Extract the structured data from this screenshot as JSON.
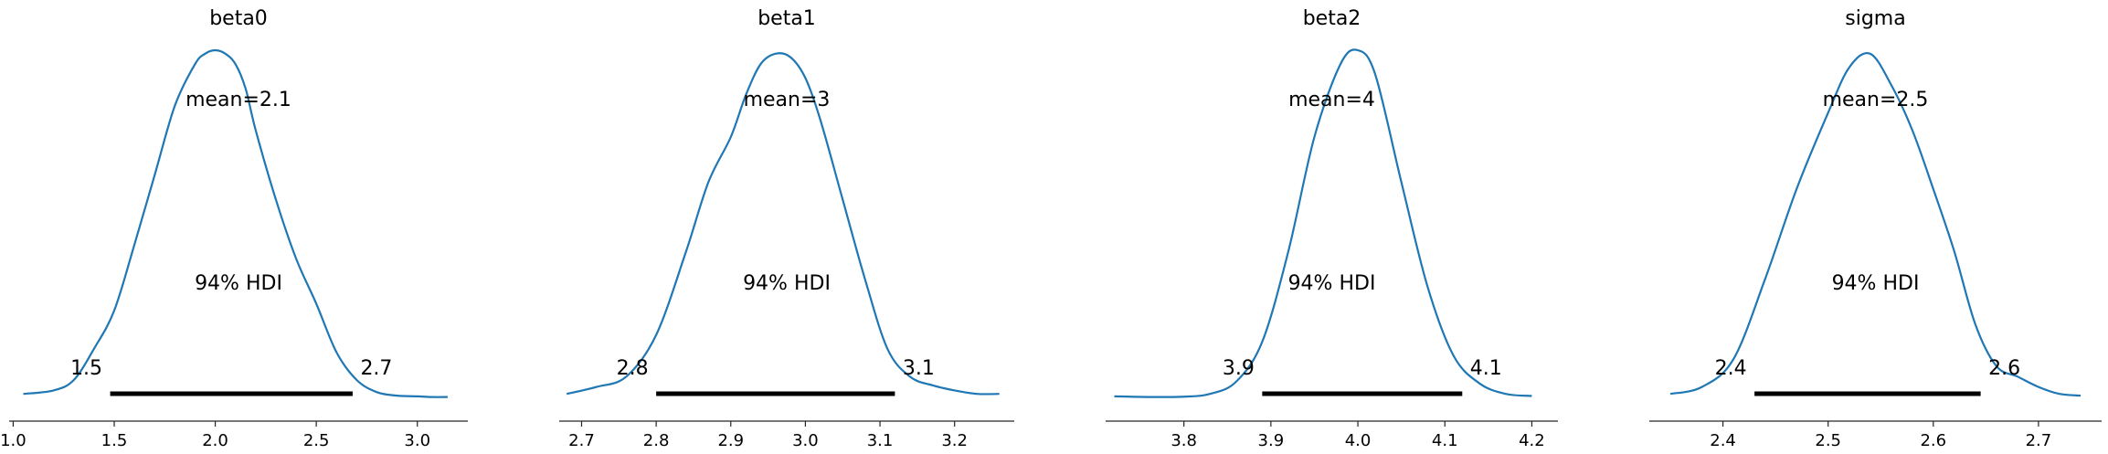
{
  "chart_data": [
    {
      "type": "line",
      "title": "beta0",
      "xlim": [
        0.98,
        3.25
      ],
      "xticks": [
        1.0,
        1.5,
        2.0,
        2.5,
        3.0
      ],
      "xtick_labels": [
        "1.0",
        "1.5",
        "2.0",
        "2.5",
        "3.0"
      ],
      "curve": {
        "x": [
          1.05,
          1.2,
          1.3,
          1.4,
          1.5,
          1.6,
          1.7,
          1.8,
          1.9,
          1.95,
          2.0,
          2.05,
          2.1,
          2.15,
          2.2,
          2.3,
          2.4,
          2.5,
          2.6,
          2.7,
          2.8,
          2.9,
          3.0,
          3.07,
          3.15
        ],
        "y": [
          0.01,
          0.02,
          0.05,
          0.14,
          0.25,
          0.44,
          0.64,
          0.84,
          0.96,
          0.99,
          1.0,
          0.99,
          0.96,
          0.89,
          0.77,
          0.57,
          0.4,
          0.27,
          0.13,
          0.05,
          0.015,
          0.005,
          0.003,
          0.001,
          0.001
        ]
      },
      "mean_label": "mean=2.1",
      "hdi_label": "94% HDI",
      "hdi": [
        1.48,
        2.68
      ],
      "hdi_low_label": "1.5",
      "hdi_high_label": "2.7"
    },
    {
      "type": "line",
      "title": "beta1",
      "xlim": [
        2.67,
        3.28
      ],
      "xticks": [
        2.7,
        2.8,
        2.9,
        3.0,
        3.1,
        3.2
      ],
      "xtick_labels": [
        "2.7",
        "2.8",
        "2.9",
        "3.0",
        "3.1",
        "3.2"
      ],
      "curve": {
        "x": [
          2.68,
          2.72,
          2.76,
          2.8,
          2.84,
          2.87,
          2.9,
          2.92,
          2.94,
          2.96,
          2.98,
          3.0,
          3.02,
          3.05,
          3.08,
          3.11,
          3.14,
          3.17,
          3.2,
          3.23,
          3.26
        ],
        "y": [
          0.01,
          0.03,
          0.06,
          0.18,
          0.42,
          0.62,
          0.75,
          0.87,
          0.96,
          0.99,
          0.98,
          0.92,
          0.8,
          0.57,
          0.34,
          0.14,
          0.06,
          0.035,
          0.02,
          0.01,
          0.01
        ]
      },
      "mean_label": "mean=3",
      "hdi_label": "94% HDI",
      "hdi": [
        2.8,
        3.12
      ],
      "hdi_low_label": "2.8",
      "hdi_high_label": "3.1"
    },
    {
      "type": "line",
      "title": "beta2",
      "xlim": [
        3.71,
        4.23
      ],
      "xticks": [
        3.8,
        3.9,
        4.0,
        4.1,
        4.2
      ],
      "xtick_labels": [
        "3.8",
        "3.9",
        "4.0",
        "4.1",
        "4.2"
      ],
      "curve": {
        "x": [
          3.72,
          3.76,
          3.8,
          3.83,
          3.86,
          3.89,
          3.92,
          3.95,
          3.98,
          4.0,
          4.02,
          4.05,
          4.08,
          4.11,
          4.14,
          4.17,
          4.2
        ],
        "y": [
          0.003,
          0.001,
          0.002,
          0.01,
          0.045,
          0.16,
          0.42,
          0.75,
          0.96,
          1.0,
          0.93,
          0.62,
          0.32,
          0.12,
          0.04,
          0.01,
          0.004
        ]
      },
      "mean_label": "mean=4",
      "hdi_label": "94% HDI",
      "hdi": [
        3.89,
        4.12
      ],
      "hdi_low_label": "3.9",
      "hdi_high_label": "4.1"
    },
    {
      "type": "line",
      "title": "sigma",
      "xlim": [
        2.33,
        2.76
      ],
      "xticks": [
        2.4,
        2.5,
        2.6,
        2.7
      ],
      "xtick_labels": [
        "2.4",
        "2.5",
        "2.6",
        "2.7"
      ],
      "curve": {
        "x": [
          2.35,
          2.38,
          2.41,
          2.44,
          2.47,
          2.5,
          2.52,
          2.54,
          2.56,
          2.58,
          2.6,
          2.62,
          2.64,
          2.66,
          2.68,
          2.7,
          2.72,
          2.74
        ],
        "y": [
          0.01,
          0.03,
          0.11,
          0.34,
          0.6,
          0.82,
          0.95,
          0.99,
          0.9,
          0.77,
          0.6,
          0.42,
          0.21,
          0.09,
          0.06,
          0.03,
          0.01,
          0.005
        ]
      },
      "mean_label": "mean=2.5",
      "hdi_label": "94% HDI",
      "hdi": [
        2.43,
        2.645
      ],
      "hdi_low_label": "2.4",
      "hdi_high_label": "2.6"
    }
  ],
  "colors": {
    "curve": "#1f77b4",
    "hdi_bar": "#000000",
    "axis": "#262626"
  }
}
